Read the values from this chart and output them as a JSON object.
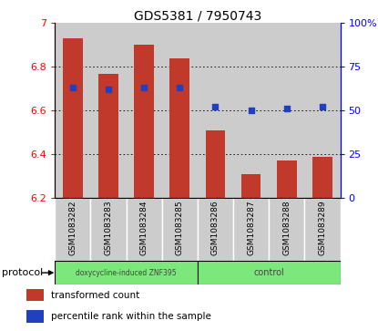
{
  "title": "GDS5381 / 7950743",
  "samples": [
    "GSM1083282",
    "GSM1083283",
    "GSM1083284",
    "GSM1083285",
    "GSM1083286",
    "GSM1083287",
    "GSM1083288",
    "GSM1083289"
  ],
  "bar_values": [
    6.93,
    6.77,
    6.9,
    6.84,
    6.51,
    6.31,
    6.37,
    6.39
  ],
  "bar_base": 6.2,
  "percentile_values": [
    63,
    62,
    63,
    63,
    52,
    50,
    51,
    52
  ],
  "ylim": [
    6.2,
    7.0
  ],
  "yticks_left": [
    6.2,
    6.4,
    6.6,
    6.8,
    7.0
  ],
  "ytick_left_labels": [
    "6.2",
    "6.4",
    "6.6",
    "6.8",
    "7"
  ],
  "yticks_right": [
    0,
    25,
    50,
    75,
    100
  ],
  "ytick_right_labels": [
    "0",
    "25",
    "50",
    "75",
    "100%"
  ],
  "bar_color": "#c0392b",
  "dot_color": "#2040c0",
  "protocol_groups": [
    {
      "label": "doxycycline-induced ZNF395",
      "start": 0,
      "end": 4,
      "color": "#7ce87c"
    },
    {
      "label": "control",
      "start": 4,
      "end": 8,
      "color": "#7ce87c"
    }
  ],
  "legend_bar_label": "transformed count",
  "legend_dot_label": "percentile rank within the sample",
  "tick_area_color": "#cccccc",
  "grid_color": "#000000",
  "bar_width": 0.55
}
